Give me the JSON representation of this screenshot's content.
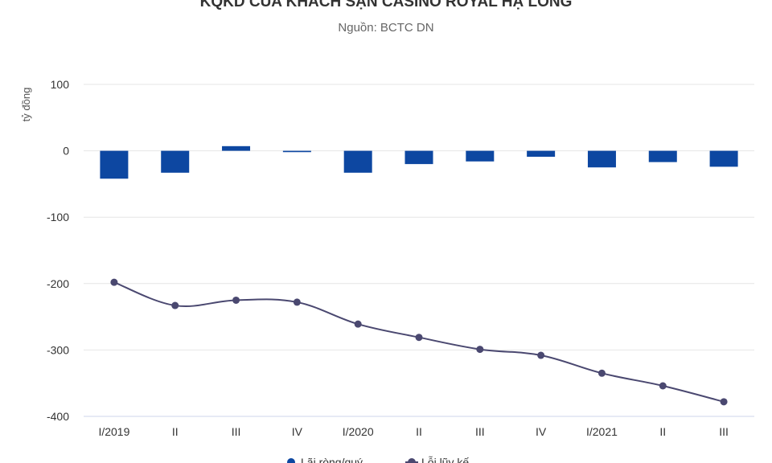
{
  "chart_data": {
    "type": "bar+line",
    "title": "KQKD CỦA KHÁCH SẠN CASINO ROYAL HẠ LONG",
    "subtitle": "Nguồn: BCTC DN",
    "ylabel": "tỷ đồng",
    "ylim": [
      -400,
      100
    ],
    "yticks": [
      100,
      0,
      -100,
      -200,
      -300,
      -400
    ],
    "grid": true,
    "legend_placement": "bottom-center",
    "categories": [
      "I/2019",
      "II",
      "III",
      "IV",
      "I/2020",
      "II",
      "III",
      "IV",
      "I/2021",
      "II",
      "III"
    ],
    "series": [
      {
        "name": "Lãi ròng/quý",
        "kind": "bar",
        "color": "#0d47a1",
        "values": [
          -42,
          -33,
          7,
          -2,
          -33,
          -20,
          -16,
          -9,
          -25,
          -17,
          -24
        ]
      },
      {
        "name": "Lỗi lũy kế",
        "kind": "line",
        "color": "#4a4870",
        "values": [
          -198,
          -233,
          -225,
          -228,
          -261,
          -281,
          -299,
          -308,
          -335,
          -354,
          -378
        ]
      }
    ]
  }
}
